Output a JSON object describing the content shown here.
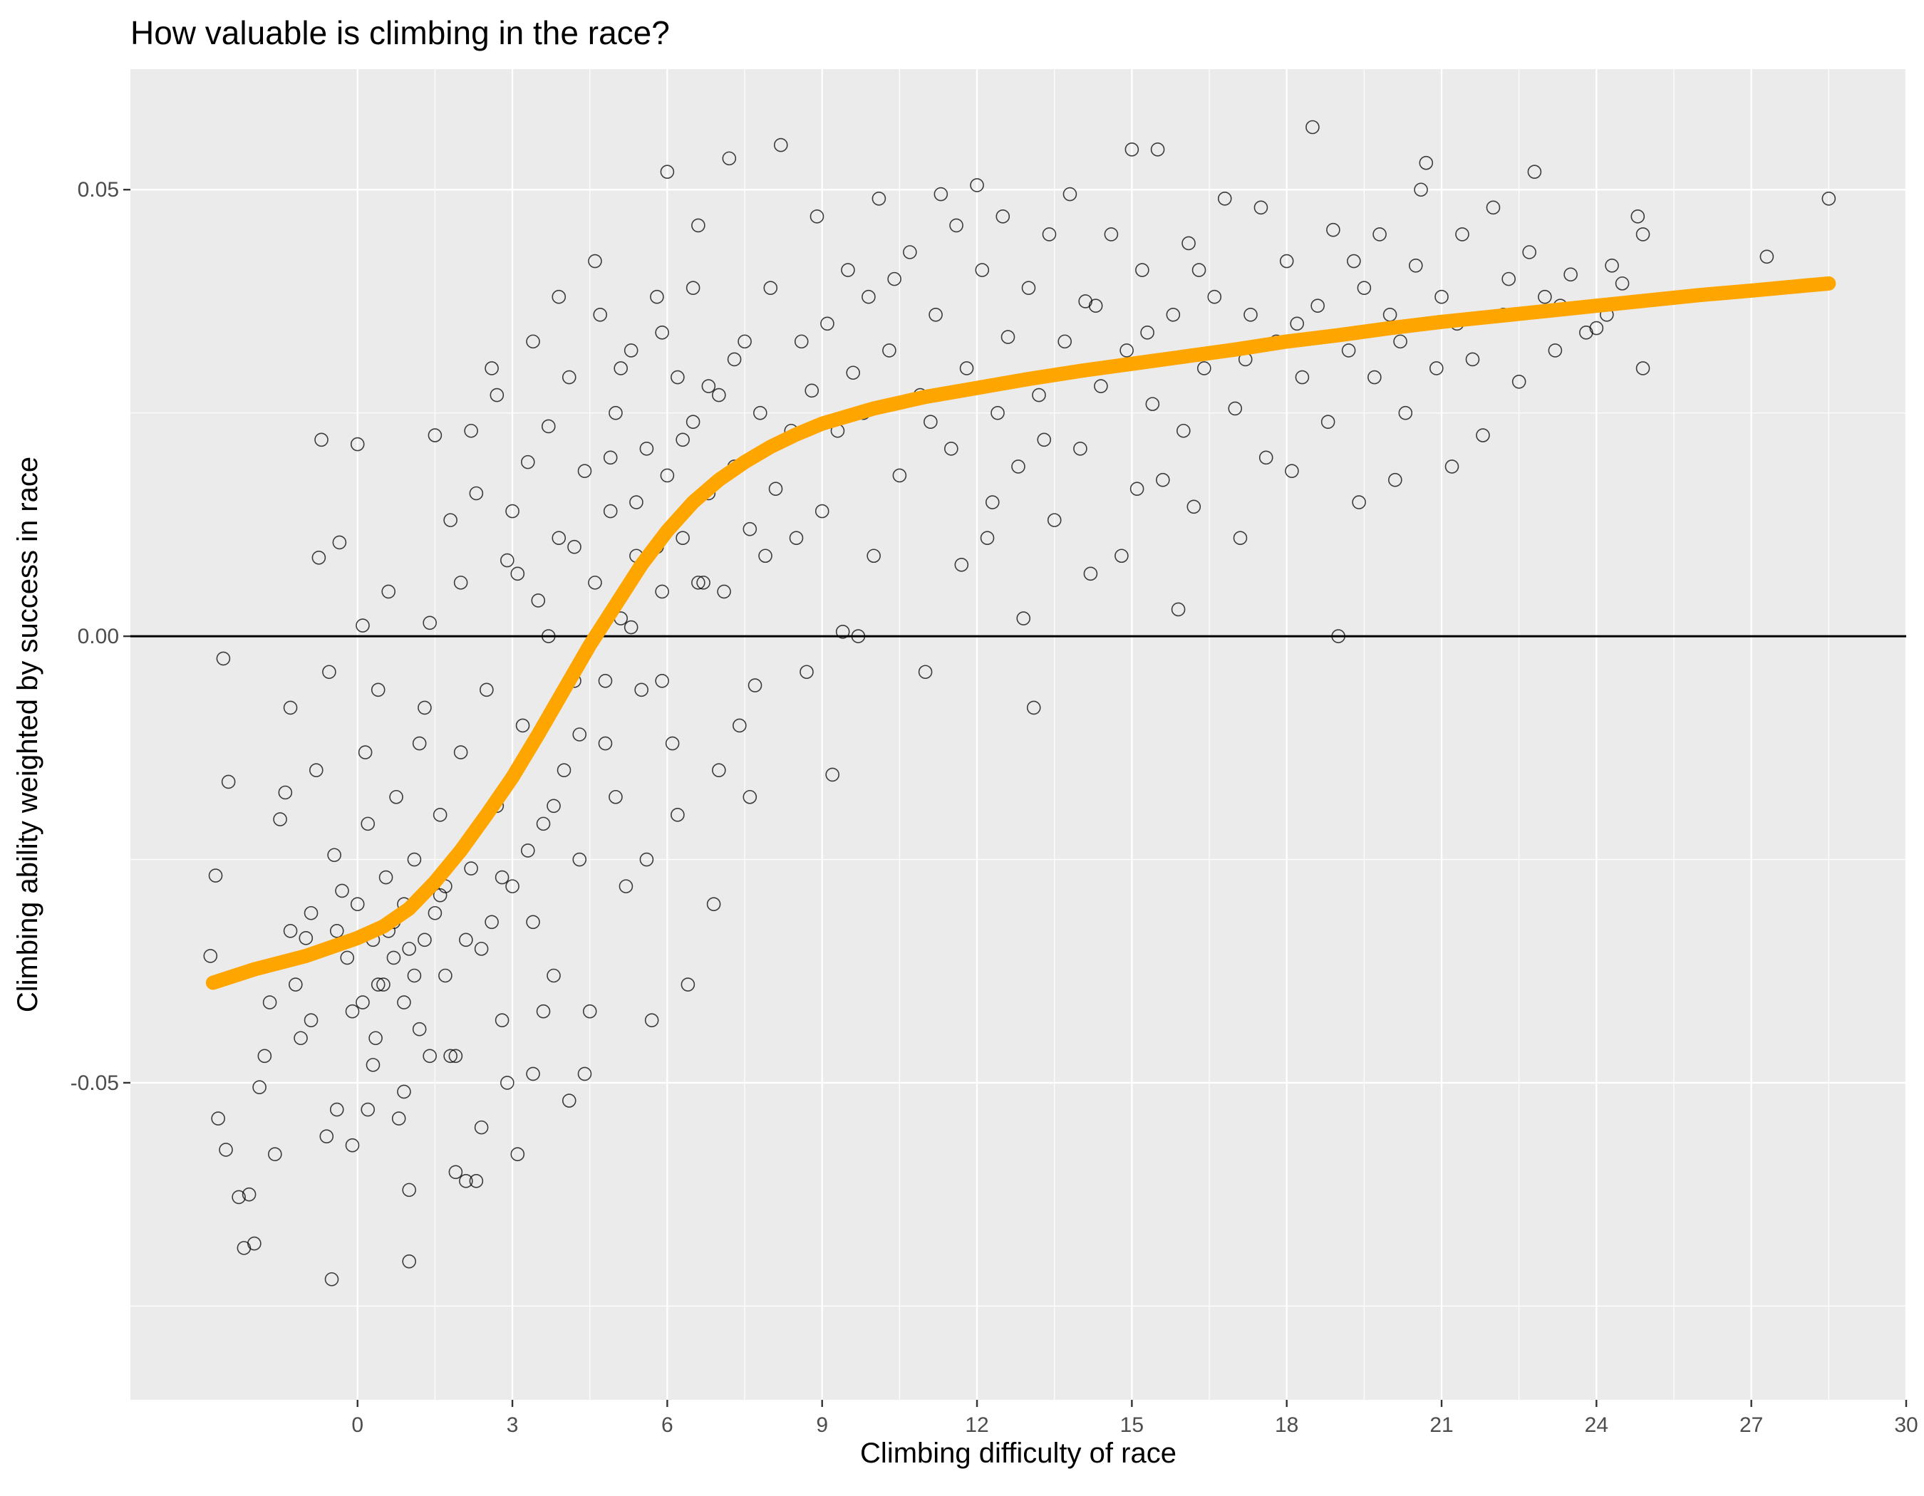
{
  "chart_data": {
    "type": "scatter",
    "title": "How valuable is climbing in the race?",
    "xlabel": "Climbing difficulty of race",
    "ylabel": "Climbing ability weighted by success in race",
    "xlim": [
      -4.4,
      30
    ],
    "ylim": [
      -0.0855,
      0.0635
    ],
    "x_ticks": [
      0,
      3,
      6,
      9,
      12,
      15,
      18,
      21,
      24,
      27,
      30
    ],
    "x_tick_labels": [
      "0",
      "3",
      "6",
      "9",
      "12",
      "15",
      "18",
      "21",
      "24",
      "27",
      "30"
    ],
    "y_ticks": [
      -0.05,
      0.0,
      0.05
    ],
    "y_tick_labels": [
      "-0.05",
      "0.00",
      "0.05"
    ],
    "grid": true,
    "reference_line_y": 0,
    "colors": {
      "panel_background": "#ebebeb",
      "grid": "#ffffff",
      "points": "#000000",
      "smooth_line": "#ffa500",
      "reference_line": "#000000"
    },
    "smooth_line": {
      "x": [
        -2.8,
        -2,
        -1,
        0,
        0.5,
        1,
        1.5,
        2,
        2.5,
        3,
        3.5,
        4,
        4.5,
        5,
        5.5,
        6,
        6.5,
        7,
        7.5,
        8,
        8.5,
        9,
        10,
        11,
        12,
        13,
        14,
        15,
        16,
        17,
        18,
        19,
        20,
        21,
        22,
        23,
        24,
        25,
        26,
        27,
        28.5
      ],
      "y": [
        -0.0388,
        -0.0373,
        -0.0358,
        -0.0338,
        -0.0325,
        -0.0305,
        -0.0275,
        -0.024,
        -0.02,
        -0.0158,
        -0.011,
        -0.006,
        -0.001,
        0.0035,
        0.008,
        0.0118,
        0.015,
        0.0175,
        0.0195,
        0.0212,
        0.0226,
        0.0238,
        0.0255,
        0.0268,
        0.0278,
        0.0288,
        0.0297,
        0.0305,
        0.0313,
        0.0321,
        0.033,
        0.0337,
        0.0345,
        0.0352,
        0.0358,
        0.0364,
        0.037,
        0.0376,
        0.0382,
        0.0387,
        0.0395
      ]
    },
    "points": [
      [
        -2.85,
        -0.0358
      ],
      [
        -2.75,
        -0.0268
      ],
      [
        -2.6,
        -0.0025
      ],
      [
        -2.5,
        -0.0163
      ],
      [
        -2.7,
        -0.054
      ],
      [
        -2.55,
        -0.0575
      ],
      [
        -2.3,
        -0.0628
      ],
      [
        -2.2,
        -0.0685
      ],
      [
        -2.1,
        -0.0625
      ],
      [
        -2.0,
        -0.068
      ],
      [
        -1.9,
        -0.0505
      ],
      [
        -1.8,
        -0.047
      ],
      [
        -1.6,
        -0.058
      ],
      [
        -1.5,
        -0.0205
      ],
      [
        -1.4,
        -0.0175
      ],
      [
        -1.3,
        -0.008
      ],
      [
        -1.2,
        -0.039
      ],
      [
        -1.1,
        -0.045
      ],
      [
        -1.0,
        -0.0338
      ],
      [
        -0.9,
        -0.031
      ],
      [
        -0.8,
        -0.015
      ],
      [
        -0.7,
        0.022
      ],
      [
        -0.75,
        0.0088
      ],
      [
        -0.6,
        -0.056
      ],
      [
        -0.5,
        -0.072
      ],
      [
        -0.55,
        -0.004
      ],
      [
        -0.45,
        -0.0245
      ],
      [
        -0.4,
        -0.053
      ],
      [
        -0.35,
        0.0105
      ],
      [
        -0.3,
        -0.0285
      ],
      [
        -0.2,
        -0.036
      ],
      [
        -0.1,
        -0.042
      ],
      [
        0.0,
        -0.03
      ],
      [
        0.0,
        0.0215
      ],
      [
        0.1,
        0.0012
      ],
      [
        0.15,
        -0.013
      ],
      [
        0.2,
        -0.021
      ],
      [
        0.3,
        -0.034
      ],
      [
        0.35,
        -0.045
      ],
      [
        0.4,
        -0.006
      ],
      [
        0.5,
        -0.039
      ],
      [
        0.55,
        -0.027
      ],
      [
        0.6,
        0.005
      ],
      [
        0.7,
        -0.032
      ],
      [
        0.75,
        -0.018
      ],
      [
        0.8,
        -0.054
      ],
      [
        0.9,
        -0.041
      ],
      [
        1.0,
        -0.035
      ],
      [
        1.0,
        -0.07
      ],
      [
        1.1,
        -0.025
      ],
      [
        1.2,
        -0.044
      ],
      [
        1.3,
        -0.008
      ],
      [
        1.4,
        0.0015
      ],
      [
        1.5,
        -0.031
      ],
      [
        1.5,
        0.0225
      ],
      [
        1.6,
        -0.02
      ],
      [
        1.7,
        -0.038
      ],
      [
        1.8,
        0.013
      ],
      [
        1.9,
        -0.047
      ],
      [
        2.0,
        -0.013
      ],
      [
        2.0,
        0.006
      ],
      [
        2.1,
        -0.061
      ],
      [
        2.2,
        -0.026
      ],
      [
        2.3,
        0.016
      ],
      [
        2.4,
        -0.035
      ],
      [
        2.5,
        -0.006
      ],
      [
        2.6,
        0.03
      ],
      [
        2.7,
        -0.019
      ],
      [
        2.8,
        -0.043
      ],
      [
        2.9,
        0.0085
      ],
      [
        3.0,
        -0.028
      ],
      [
        3.0,
        0.014
      ],
      [
        3.1,
        -0.058
      ],
      [
        3.2,
        -0.01
      ],
      [
        3.3,
        0.0195
      ],
      [
        3.4,
        -0.032
      ],
      [
        3.5,
        0.004
      ],
      [
        3.6,
        -0.021
      ],
      [
        3.7,
        0.0235
      ],
      [
        3.8,
        -0.038
      ],
      [
        3.9,
        0.011
      ],
      [
        4.0,
        -0.015
      ],
      [
        4.1,
        0.029
      ],
      [
        4.2,
        -0.005
      ],
      [
        4.3,
        -0.025
      ],
      [
        4.4,
        0.0185
      ],
      [
        4.5,
        -0.042
      ],
      [
        4.6,
        0.006
      ],
      [
        4.7,
        0.036
      ],
      [
        4.8,
        -0.012
      ],
      [
        4.9,
        0.014
      ],
      [
        5.0,
        -0.018
      ],
      [
        5.0,
        0.025
      ],
      [
        5.1,
        0.002
      ],
      [
        5.2,
        -0.028
      ],
      [
        5.3,
        0.032
      ],
      [
        5.4,
        0.009
      ],
      [
        5.5,
        -0.006
      ],
      [
        5.6,
        0.021
      ],
      [
        5.7,
        -0.043
      ],
      [
        5.8,
        0.038
      ],
      [
        5.9,
        0.005
      ],
      [
        6.0,
        0.018
      ],
      [
        6.0,
        0.052
      ],
      [
        6.1,
        -0.012
      ],
      [
        6.2,
        0.029
      ],
      [
        6.3,
        0.011
      ],
      [
        6.4,
        -0.039
      ],
      [
        6.5,
        0.024
      ],
      [
        6.6,
        0.046
      ],
      [
        6.7,
        0.006
      ],
      [
        6.8,
        0.016
      ],
      [
        6.9,
        -0.03
      ],
      [
        7.0,
        0.027
      ],
      [
        7.1,
        0.005
      ],
      [
        7.2,
        0.0535
      ],
      [
        7.3,
        0.019
      ],
      [
        7.4,
        -0.01
      ],
      [
        7.5,
        0.033
      ],
      [
        7.6,
        0.012
      ],
      [
        7.7,
        -0.0055
      ],
      [
        7.8,
        0.025
      ],
      [
        7.9,
        0.009
      ],
      [
        8.0,
        0.039
      ],
      [
        8.1,
        0.0165
      ],
      [
        8.2,
        0.055
      ],
      [
        8.4,
        0.023
      ],
      [
        8.5,
        0.011
      ],
      [
        8.6,
        0.033
      ],
      [
        8.7,
        -0.004
      ],
      [
        8.8,
        0.0275
      ],
      [
        8.9,
        0.047
      ],
      [
        9.0,
        0.014
      ],
      [
        9.1,
        0.035
      ],
      [
        9.2,
        -0.0155
      ],
      [
        9.3,
        0.023
      ],
      [
        9.4,
        0.0005
      ],
      [
        9.5,
        0.041
      ],
      [
        9.6,
        0.0295
      ],
      [
        9.7,
        0.0
      ],
      [
        9.8,
        0.025
      ],
      [
        9.9,
        0.038
      ],
      [
        10.0,
        0.009
      ],
      [
        10.1,
        0.049
      ],
      [
        10.3,
        0.032
      ],
      [
        10.5,
        0.018
      ],
      [
        10.7,
        0.043
      ],
      [
        10.9,
        0.027
      ],
      [
        11.0,
        -0.004
      ],
      [
        11.2,
        0.036
      ],
      [
        11.3,
        0.0495
      ],
      [
        11.5,
        0.021
      ],
      [
        11.6,
        0.046
      ],
      [
        11.7,
        0.008
      ],
      [
        11.8,
        0.03
      ],
      [
        12.0,
        0.0505
      ],
      [
        12.1,
        0.041
      ],
      [
        12.2,
        0.011
      ],
      [
        12.4,
        0.025
      ],
      [
        12.5,
        0.047
      ],
      [
        12.6,
        0.0335
      ],
      [
        12.8,
        0.019
      ],
      [
        12.9,
        0.002
      ],
      [
        13.0,
        0.039
      ],
      [
        13.1,
        -0.008
      ],
      [
        13.2,
        0.027
      ],
      [
        13.4,
        0.045
      ],
      [
        13.5,
        0.013
      ],
      [
        13.7,
        0.033
      ],
      [
        13.8,
        0.0495
      ],
      [
        14.0,
        0.021
      ],
      [
        14.1,
        0.0375
      ],
      [
        14.2,
        0.007
      ],
      [
        14.4,
        0.028
      ],
      [
        14.6,
        0.045
      ],
      [
        14.8,
        0.009
      ],
      [
        14.9,
        0.032
      ],
      [
        15.0,
        0.0545
      ],
      [
        15.1,
        0.0165
      ],
      [
        15.2,
        0.041
      ],
      [
        15.4,
        0.026
      ],
      [
        15.5,
        0.0545
      ],
      [
        15.6,
        0.0175
      ],
      [
        15.8,
        0.036
      ],
      [
        15.9,
        0.003
      ],
      [
        16.0,
        0.023
      ],
      [
        16.1,
        0.044
      ],
      [
        16.2,
        0.0145
      ],
      [
        16.4,
        0.03
      ],
      [
        16.6,
        0.038
      ],
      [
        16.8,
        0.049
      ],
      [
        17.0,
        0.0255
      ],
      [
        17.1,
        0.011
      ],
      [
        17.3,
        0.036
      ],
      [
        17.5,
        0.048
      ],
      [
        17.6,
        0.02
      ],
      [
        17.8,
        0.033
      ],
      [
        18.0,
        0.042
      ],
      [
        18.1,
        0.0185
      ],
      [
        18.3,
        0.029
      ],
      [
        18.5,
        0.057
      ],
      [
        18.6,
        0.037
      ],
      [
        18.8,
        0.024
      ],
      [
        18.9,
        0.0455
      ],
      [
        19.0,
        0.0
      ],
      [
        19.2,
        0.032
      ],
      [
        19.4,
        0.015
      ],
      [
        19.5,
        0.039
      ],
      [
        19.7,
        0.029
      ],
      [
        19.8,
        0.045
      ],
      [
        20.0,
        0.036
      ],
      [
        20.1,
        0.0175
      ],
      [
        20.3,
        0.025
      ],
      [
        20.5,
        0.0415
      ],
      [
        20.6,
        0.05
      ],
      [
        20.7,
        0.053
      ],
      [
        20.9,
        0.03
      ],
      [
        21.0,
        0.038
      ],
      [
        21.2,
        0.019
      ],
      [
        21.4,
        0.045
      ],
      [
        21.6,
        0.031
      ],
      [
        21.8,
        0.0225
      ],
      [
        22.0,
        0.048
      ],
      [
        22.2,
        0.036
      ],
      [
        22.5,
        0.0285
      ],
      [
        22.7,
        0.043
      ],
      [
        22.8,
        0.052
      ],
      [
        23.0,
        0.038
      ],
      [
        23.2,
        0.032
      ],
      [
        23.5,
        0.0405
      ],
      [
        23.8,
        0.034
      ],
      [
        24.0,
        0.0345
      ],
      [
        24.3,
        0.0415
      ],
      [
        24.5,
        0.0395
      ],
      [
        24.8,
        0.047
      ],
      [
        24.9,
        0.03
      ],
      [
        24.9,
        0.045
      ],
      [
        27.3,
        0.0425
      ],
      [
        28.5,
        0.049
      ],
      [
        1.8,
        -0.047
      ],
      [
        2.3,
        -0.061
      ],
      [
        1.4,
        -0.047
      ],
      [
        0.9,
        -0.051
      ],
      [
        0.2,
        -0.053
      ],
      [
        -0.1,
        -0.057
      ],
      [
        0.3,
        -0.048
      ],
      [
        1.6,
        -0.029
      ],
      [
        2.1,
        -0.034
      ],
      [
        2.8,
        -0.027
      ],
      [
        3.3,
        -0.024
      ],
      [
        3.8,
        -0.019
      ],
      [
        4.3,
        -0.011
      ],
      [
        4.8,
        -0.005
      ],
      [
        5.3,
        0.001
      ],
      [
        5.8,
        0.01
      ],
      [
        6.3,
        0.022
      ],
      [
        6.8,
        0.028
      ],
      [
        7.3,
        0.031
      ],
      [
        1.2,
        -0.012
      ],
      [
        0.6,
        -0.033
      ],
      [
        1.1,
        -0.038
      ],
      [
        2.6,
        -0.032
      ],
      [
        3.6,
        -0.042
      ],
      [
        4.1,
        -0.052
      ],
      [
        4.4,
        -0.049
      ],
      [
        5.6,
        -0.025
      ],
      [
        6.2,
        -0.02
      ],
      [
        7.0,
        -0.015
      ],
      [
        7.6,
        -0.018
      ],
      [
        2.2,
        0.023
      ],
      [
        2.7,
        0.027
      ],
      [
        3.4,
        0.033
      ],
      [
        3.9,
        0.038
      ],
      [
        4.6,
        0.042
      ],
      [
        5.1,
        0.03
      ],
      [
        5.9,
        0.034
      ],
      [
        6.5,
        0.039
      ],
      [
        3.1,
        0.007
      ],
      [
        3.7,
        0.0
      ],
      [
        4.2,
        0.01
      ],
      [
        4.9,
        0.02
      ],
      [
        5.4,
        0.015
      ],
      [
        5.9,
        -0.005
      ],
      [
        6.6,
        0.006
      ],
      [
        0.4,
        -0.039
      ],
      [
        0.7,
        -0.036
      ],
      [
        0.9,
        -0.03
      ],
      [
        1.3,
        -0.034
      ],
      [
        1.7,
        -0.028
      ],
      [
        -1.7,
        -0.041
      ],
      [
        -1.3,
        -0.033
      ],
      [
        -0.9,
        -0.043
      ],
      [
        -0.4,
        -0.033
      ],
      [
        0.1,
        -0.041
      ],
      [
        2.4,
        -0.055
      ],
      [
        2.9,
        -0.05
      ],
      [
        3.4,
        -0.049
      ],
      [
        1.9,
        -0.06
      ],
      [
        1.0,
        -0.062
      ],
      [
        10.4,
        0.04
      ],
      [
        11.1,
        0.024
      ],
      [
        12.3,
        0.015
      ],
      [
        13.3,
        0.022
      ],
      [
        14.3,
        0.037
      ],
      [
        15.3,
        0.034
      ],
      [
        16.3,
        0.041
      ],
      [
        17.2,
        0.031
      ],
      [
        18.2,
        0.035
      ],
      [
        19.3,
        0.042
      ],
      [
        20.2,
        0.033
      ],
      [
        21.3,
        0.035
      ],
      [
        22.3,
        0.04
      ],
      [
        23.3,
        0.037
      ],
      [
        24.2,
        0.036
      ]
    ]
  }
}
